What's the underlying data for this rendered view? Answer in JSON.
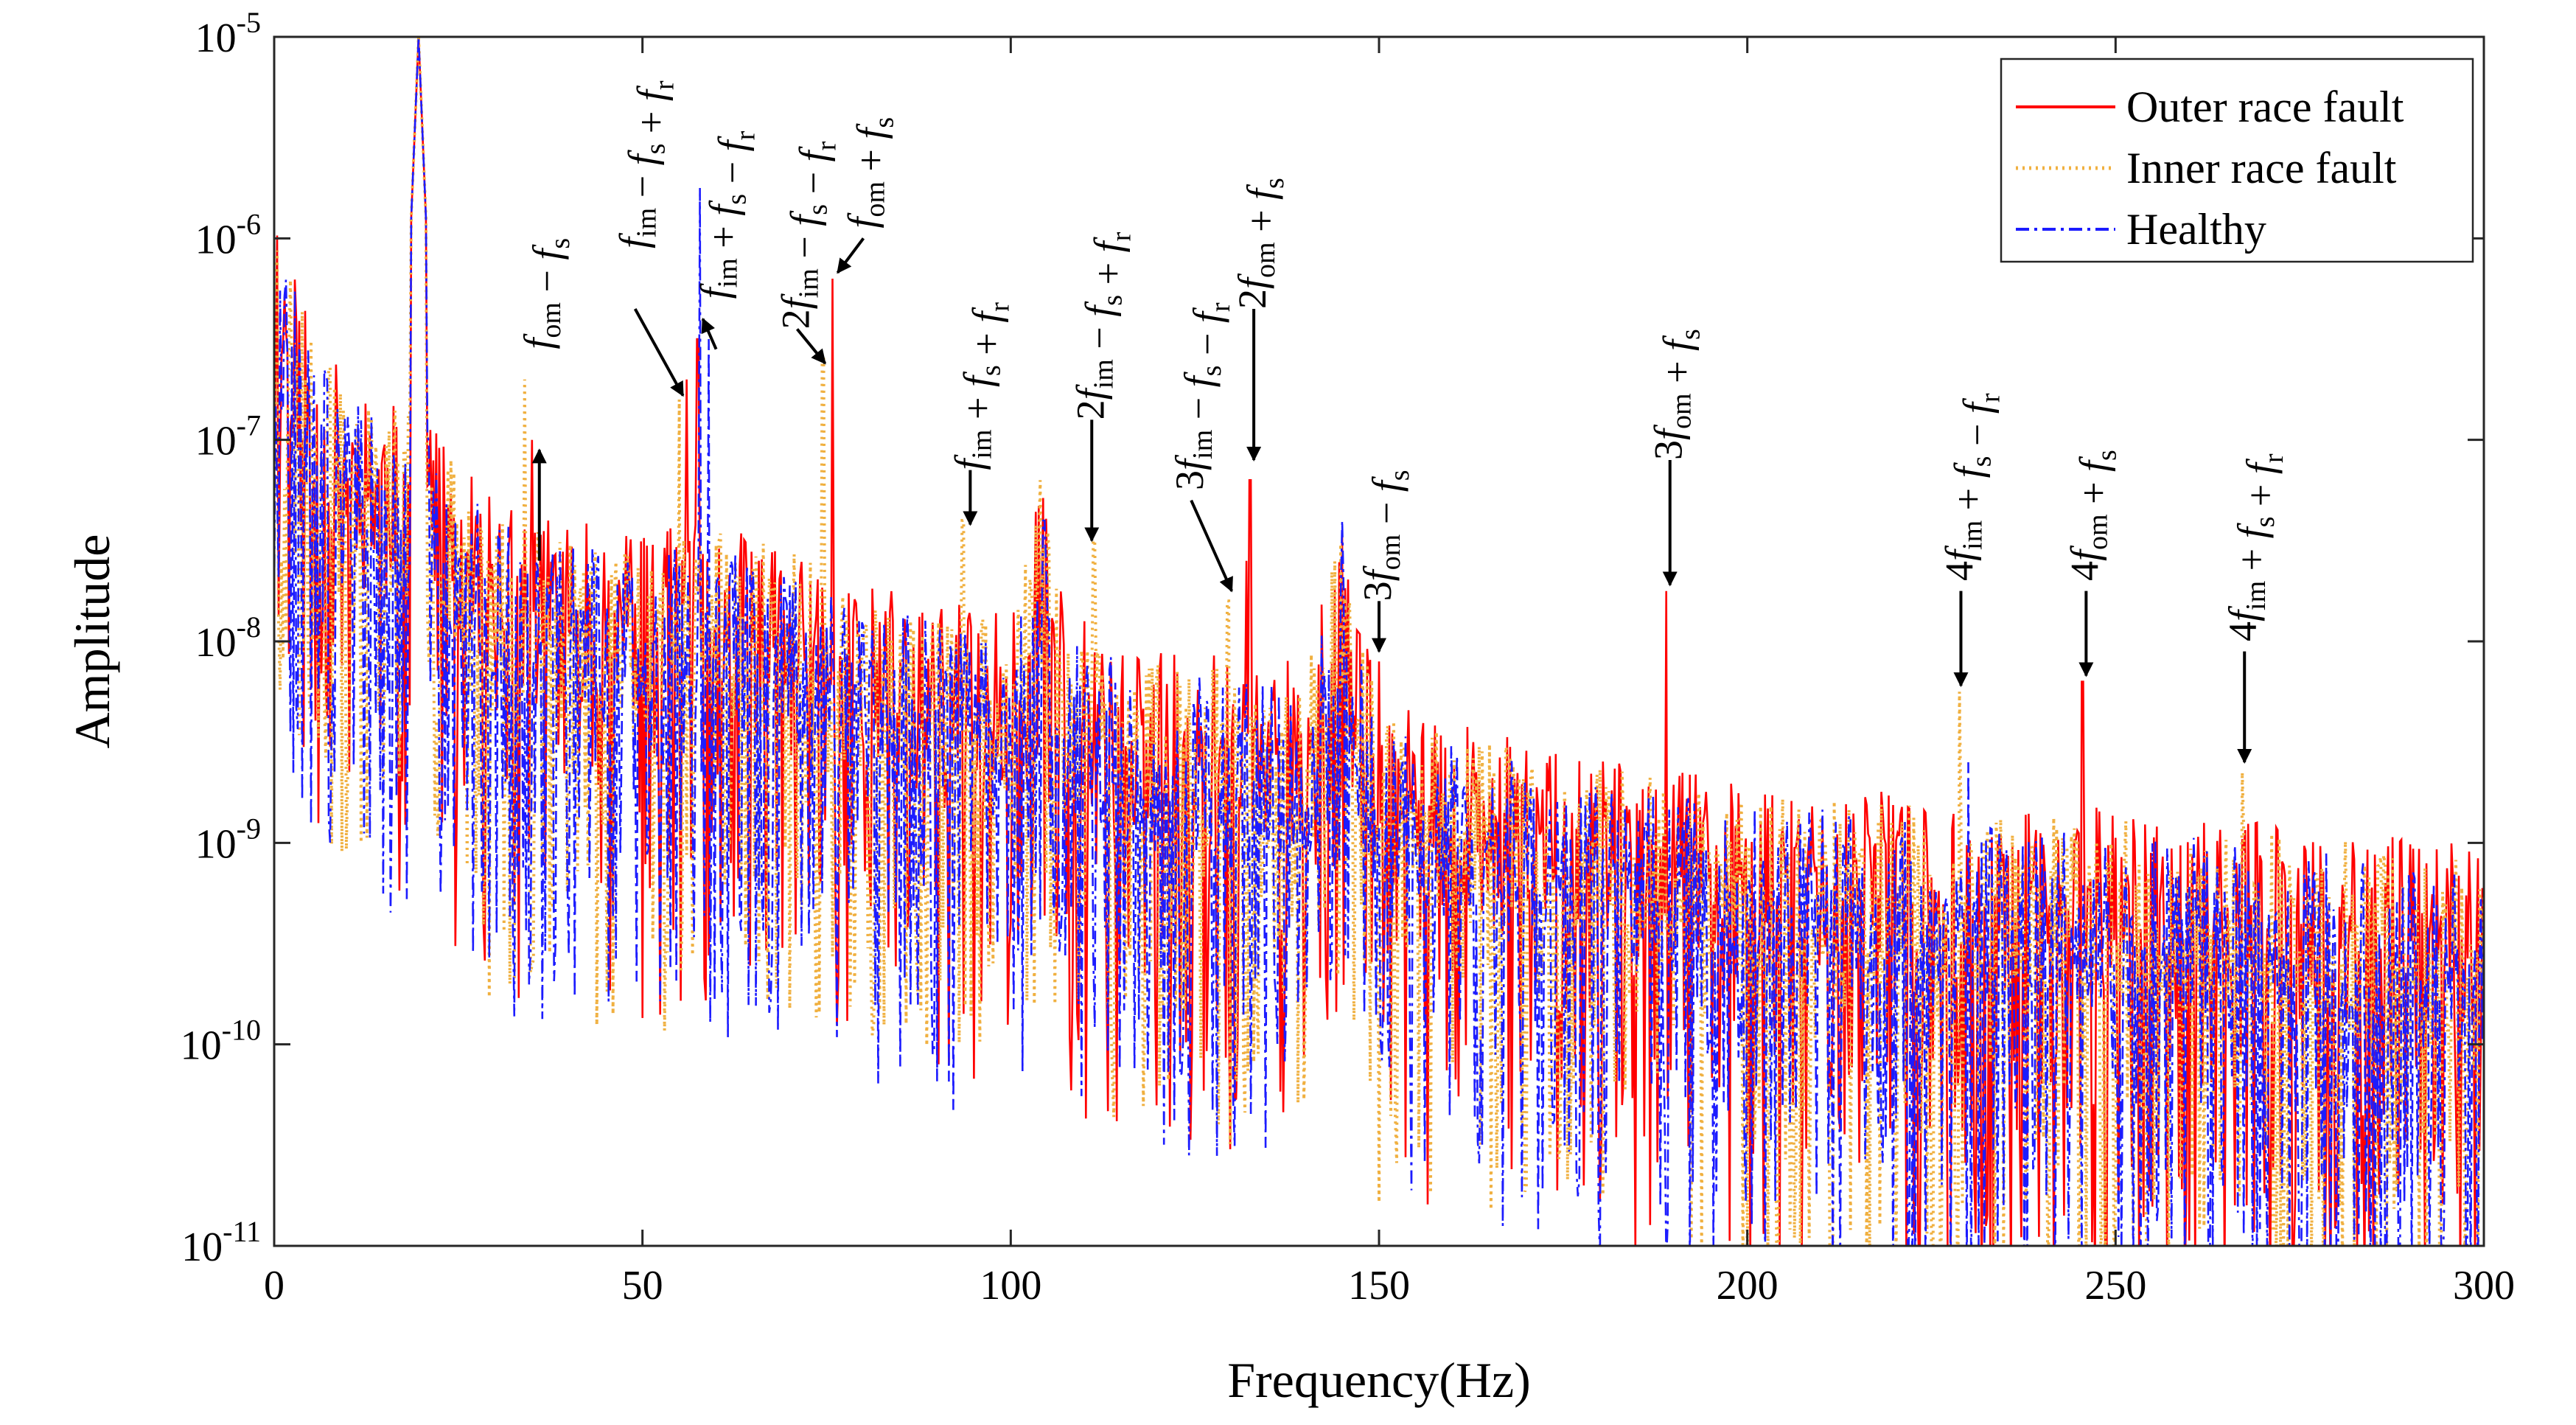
{
  "chart_data": {
    "type": "line",
    "title": "",
    "xlabel": "Frequency(Hz)",
    "ylabel": "Amplitude",
    "yscale": "log",
    "xlim": [
      0,
      300
    ],
    "ylim_exponents": [
      -11,
      -5
    ],
    "x_ticks": [
      0,
      50,
      100,
      150,
      200,
      250,
      300
    ],
    "x_tick_labels": [
      "0",
      "50",
      "100",
      "150",
      "200",
      "250",
      "300"
    ],
    "y_ticks": [
      {
        "exp": -5,
        "base": "10",
        "sup": "-5"
      },
      {
        "exp": -6,
        "base": "10",
        "sup": "-6"
      },
      {
        "exp": -7,
        "base": "10",
        "sup": "-7"
      },
      {
        "exp": -8,
        "base": "10",
        "sup": "-8"
      },
      {
        "exp": -9,
        "base": "10",
        "sup": "-9"
      },
      {
        "exp": -10,
        "base": "10",
        "sup": "-10"
      },
      {
        "exp": -11,
        "base": "10",
        "sup": "-11"
      }
    ],
    "grid": false,
    "legend_position": "top-right",
    "series": [
      {
        "name": "Outer race fault",
        "color": "#ff0000",
        "style": "solid",
        "noise_log_offset": 0.05,
        "seed": 11,
        "peaks": [
          [
            35,
            -7.0
          ],
          [
            56,
            -6.7
          ],
          [
            57.5,
            -6.5
          ],
          [
            75.8,
            -6.2
          ],
          [
            132.5,
            -7.2
          ],
          [
            150,
            -8.1
          ],
          [
            189,
            -7.75
          ],
          [
            245.5,
            -8.2
          ],
          [
            132,
            -7.6
          ],
          [
            110,
            -7.9
          ]
        ]
      },
      {
        "name": "Inner race fault",
        "color": "#f0b040",
        "style": "dotted",
        "noise_log_offset": 0.0,
        "seed": 23,
        "peaks": [
          [
            34,
            -6.7
          ],
          [
            55,
            -6.8
          ],
          [
            74.5,
            -6.6
          ],
          [
            93.5,
            -7.4
          ],
          [
            111.3,
            -7.5
          ],
          [
            129.5,
            -7.8
          ],
          [
            228.8,
            -8.25
          ],
          [
            267.2,
            -8.65
          ],
          [
            104,
            -7.2
          ]
        ]
      },
      {
        "name": "Healthy",
        "color": "#1c1cff",
        "style": "dashdot",
        "noise_log_offset": -0.05,
        "seed": 37,
        "peaks": [
          [
            57.8,
            -5.75
          ],
          [
            104.5,
            -7.4
          ],
          [
            145,
            -7.4
          ],
          [
            230,
            -8.6
          ],
          [
            59,
            -6.5
          ]
        ]
      }
    ],
    "spectrum_profile": [
      [
        0,
        -6.3
      ],
      [
        5,
        -6.9
      ],
      [
        10,
        -7.2
      ],
      [
        15,
        -7.3
      ],
      [
        20,
        -7.3
      ],
      [
        25,
        -7.6
      ],
      [
        30,
        -7.8
      ],
      [
        40,
        -7.9
      ],
      [
        50,
        -7.95
      ],
      [
        60,
        -7.9
      ],
      [
        70,
        -8.0
      ],
      [
        80,
        -8.2
      ],
      [
        90,
        -8.3
      ],
      [
        100,
        -8.35
      ],
      [
        104,
        -7.7
      ],
      [
        108,
        -8.4
      ],
      [
        120,
        -8.55
      ],
      [
        140,
        -8.6
      ],
      [
        145,
        -7.9
      ],
      [
        150,
        -8.8
      ],
      [
        170,
        -9.0
      ],
      [
        200,
        -9.2
      ],
      [
        240,
        -9.3
      ],
      [
        300,
        -9.5
      ]
    ],
    "annotations": [
      {
        "label_parts": [
          {
            "t": "f",
            "i": true
          },
          {
            "t": "om",
            "s": true
          },
          {
            "t": " − "
          },
          {
            "t": "f",
            "i": true
          },
          {
            "t": "s",
            "s": true
          }
        ],
        "x": 36,
        "arrow_from": -7.6,
        "arrow_to": -7.05,
        "text_start": -6.55
      },
      {
        "label_parts": [
          {
            "t": "f",
            "i": true
          },
          {
            "t": "im",
            "s": true
          },
          {
            "t": " − "
          },
          {
            "t": "f",
            "i": true
          },
          {
            "t": "s",
            "s": true
          },
          {
            "t": " + "
          },
          {
            "t": "f",
            "i": true
          },
          {
            "t": "r",
            "s": true
          }
        ],
        "x": 55.5,
        "arrow_from": -6.35,
        "arrow_to": -6.78,
        "text_start": -6.05,
        "from_x": 49
      },
      {
        "label_parts": [
          {
            "t": "f",
            "i": true
          },
          {
            "t": "im",
            "s": true
          },
          {
            "t": " + "
          },
          {
            "t": "f",
            "i": true
          },
          {
            "t": "s",
            "s": true
          },
          {
            "t": " − "
          },
          {
            "t": "f",
            "i": true
          },
          {
            "t": "r",
            "s": true
          }
        ],
        "x": 58.2,
        "arrow_from": -6.55,
        "arrow_to": -6.4,
        "text_start": -6.3,
        "from_x": 60
      },
      {
        "label_parts": [
          {
            "t": "2"
          },
          {
            "t": "f",
            "i": true
          },
          {
            "t": "im",
            "s": true
          },
          {
            "t": " − "
          },
          {
            "t": "f",
            "i": true
          },
          {
            "t": "s",
            "s": true
          },
          {
            "t": " − "
          },
          {
            "t": "f",
            "i": true
          },
          {
            "t": "r",
            "s": true
          }
        ],
        "x": 74.8,
        "arrow_from": -6.45,
        "arrow_to": -6.62,
        "text_start": -6.45,
        "from_x": 71
      },
      {
        "label_parts": [
          {
            "t": "f",
            "i": true
          },
          {
            "t": "om",
            "s": true
          },
          {
            "t": " + "
          },
          {
            "t": "f",
            "i": true
          },
          {
            "t": "s",
            "s": true
          }
        ],
        "x": 76.5,
        "arrow_from": -6.0,
        "arrow_to": -6.17,
        "text_start": -5.95,
        "from_x": 80
      },
      {
        "label_parts": [
          {
            "t": "f",
            "i": true
          },
          {
            "t": "im",
            "s": true
          },
          {
            "t": " + "
          },
          {
            "t": "f",
            "i": true
          },
          {
            "t": "s",
            "s": true
          },
          {
            "t": " + "
          },
          {
            "t": "f",
            "i": true
          },
          {
            "t": "r",
            "s": true
          }
        ],
        "x": 94.5,
        "arrow_from": -7.15,
        "arrow_to": -7.42,
        "text_start": -7.15
      },
      {
        "label_parts": [
          {
            "t": "2"
          },
          {
            "t": "f",
            "i": true
          },
          {
            "t": "im",
            "s": true
          },
          {
            "t": " − "
          },
          {
            "t": "f",
            "i": true
          },
          {
            "t": "s",
            "s": true
          },
          {
            "t": " + "
          },
          {
            "t": "f",
            "i": true
          },
          {
            "t": "r",
            "s": true
          }
        ],
        "x": 111,
        "arrow_from": -6.9,
        "arrow_to": -7.5,
        "text_start": -6.9
      },
      {
        "label_parts": [
          {
            "t": "3"
          },
          {
            "t": "f",
            "i": true
          },
          {
            "t": "im",
            "s": true
          },
          {
            "t": " − "
          },
          {
            "t": "f",
            "i": true
          },
          {
            "t": "s",
            "s": true
          },
          {
            "t": " − "
          },
          {
            "t": "f",
            "i": true
          },
          {
            "t": "r",
            "s": true
          }
        ],
        "x": 130,
        "arrow_from": -7.3,
        "arrow_to": -7.75,
        "text_start": -7.25,
        "from_x": 124.5
      },
      {
        "label_parts": [
          {
            "t": "2"
          },
          {
            "t": "f",
            "i": true
          },
          {
            "t": "om",
            "s": true
          },
          {
            "t": " + "
          },
          {
            "t": "f",
            "i": true
          },
          {
            "t": "s",
            "s": true
          }
        ],
        "x": 133,
        "arrow_from": -6.35,
        "arrow_to": -7.1,
        "text_start": -6.35
      },
      {
        "label_parts": [
          {
            "t": "3"
          },
          {
            "t": "f",
            "i": true
          },
          {
            "t": "om",
            "s": true
          },
          {
            "t": " − "
          },
          {
            "t": "f",
            "i": true
          },
          {
            "t": "s",
            "s": true
          }
        ],
        "x": 150,
        "arrow_from": -7.8,
        "arrow_to": -8.05,
        "text_start": -7.8
      },
      {
        "label_parts": [
          {
            "t": "3"
          },
          {
            "t": "f",
            "i": true
          },
          {
            "t": "om",
            "s": true
          },
          {
            "t": " + "
          },
          {
            "t": "f",
            "i": true
          },
          {
            "t": "s",
            "s": true
          }
        ],
        "x": 189.5,
        "arrow_from": -7.1,
        "arrow_to": -7.72,
        "text_start": -7.1
      },
      {
        "label_parts": [
          {
            "t": "4"
          },
          {
            "t": "f",
            "i": true
          },
          {
            "t": "im",
            "s": true
          },
          {
            "t": " + "
          },
          {
            "t": "f",
            "i": true
          },
          {
            "t": "s",
            "s": true
          },
          {
            "t": " − "
          },
          {
            "t": "f",
            "i": true
          },
          {
            "t": "r",
            "s": true
          }
        ],
        "x": 229,
        "arrow_from": -7.75,
        "arrow_to": -8.22,
        "text_start": -7.7
      },
      {
        "label_parts": [
          {
            "t": "4"
          },
          {
            "t": "f",
            "i": true
          },
          {
            "t": "om",
            "s": true
          },
          {
            "t": " + "
          },
          {
            "t": "f",
            "i": true
          },
          {
            "t": "s",
            "s": true
          }
        ],
        "x": 246,
        "arrow_from": -7.75,
        "arrow_to": -8.17,
        "text_start": -7.7
      },
      {
        "label_parts": [
          {
            "t": "4"
          },
          {
            "t": "f",
            "i": true
          },
          {
            "t": "im",
            "s": true
          },
          {
            "t": " + "
          },
          {
            "t": "f",
            "i": true
          },
          {
            "t": "s",
            "s": true
          },
          {
            "t": " + "
          },
          {
            "t": "f",
            "i": true
          },
          {
            "t": "r",
            "s": true
          }
        ],
        "x": 267.5,
        "arrow_from": -8.05,
        "arrow_to": -8.6,
        "text_start": -8.0
      }
    ]
  }
}
